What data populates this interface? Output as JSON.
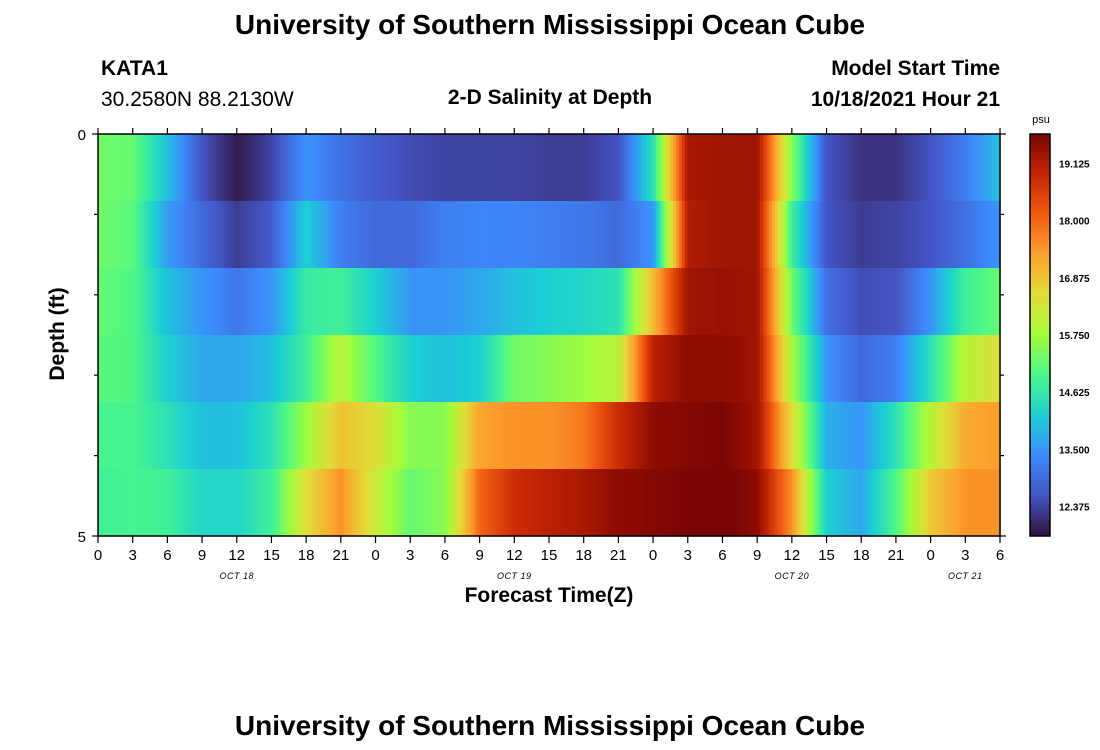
{
  "header": {
    "title": "University of Southern Mississippi Ocean Cube",
    "station": "KATA1",
    "coords": "30.2580N  88.2130W",
    "subtitle": "2-D Salinity at Depth",
    "model_label": "Model Start Time",
    "model_time": "10/18/2021 Hour 21"
  },
  "footer": {
    "title": "University of Southern Mississippi Ocean Cube"
  },
  "colors": {
    "scale": [
      "#30123b",
      "#4454c4",
      "#3d8bfd",
      "#1bcfd4",
      "#4af78a",
      "#a4fc3c",
      "#e1dd37",
      "#fca22e",
      "#f05b12",
      "#c42503",
      "#7a0403"
    ]
  },
  "chart_data": {
    "type": "heatmap",
    "title": "2-D Salinity at Depth",
    "xlabel": "Forecast Time(Z)",
    "ylabel": "Depth (ft)",
    "y_ticks": [
      "0",
      "5"
    ],
    "ylim": [
      0,
      5
    ],
    "x_ticks": [
      "0",
      "3",
      "6",
      "9",
      "12",
      "15",
      "18",
      "21",
      "0",
      "3",
      "6",
      "9",
      "12",
      "15",
      "18",
      "21",
      "0",
      "3",
      "6",
      "9",
      "12",
      "15",
      "18",
      "21",
      "0",
      "3",
      "6"
    ],
    "date_labels": [
      {
        "label": "OCT 18",
        "hour_index": 12
      },
      {
        "label": "OCT 19",
        "hour_index": 36
      },
      {
        "label": "OCT 20",
        "hour_index": 60
      },
      {
        "label": "OCT 21",
        "hour_index": 75
      }
    ],
    "colorbar": {
      "unit": "psu",
      "min": 11.8,
      "max": 19.7,
      "ticks": [
        "19.125",
        "18.000",
        "16.875",
        "15.750",
        "14.625",
        "13.500",
        "12.375"
      ],
      "tick_values": [
        19.125,
        18.0,
        16.875,
        15.75,
        14.625,
        13.5,
        12.375
      ]
    },
    "hours": [
      0,
      3,
      6,
      9,
      12,
      15,
      18,
      21,
      24,
      27,
      30,
      33,
      36,
      39,
      42,
      45,
      48,
      51,
      54,
      57,
      60,
      63,
      66,
      69,
      72,
      75,
      78
    ],
    "depth_levels": [
      0,
      1,
      2,
      3,
      4,
      5
    ],
    "values": [
      [
        15.3,
        15.2,
        14.0,
        12.6,
        11.9,
        12.4,
        13.5,
        13.0,
        12.7,
        12.5,
        12.4,
        12.4,
        12.4,
        12.3,
        12.3,
        12.6,
        14.5,
        19.2,
        19.3,
        19.3,
        15.5,
        12.6,
        12.2,
        12.2,
        12.6,
        13.2,
        14.0
      ],
      [
        15.3,
        15.1,
        13.6,
        12.9,
        12.3,
        12.7,
        14.2,
        13.2,
        12.9,
        12.9,
        13.2,
        13.3,
        13.3,
        13.2,
        13.1,
        12.9,
        13.5,
        19.1,
        19.3,
        19.3,
        14.8,
        12.6,
        12.3,
        12.4,
        12.6,
        13.0,
        13.5
      ],
      [
        15.2,
        15.0,
        14.0,
        13.5,
        13.1,
        13.5,
        14.7,
        14.8,
        14.2,
        13.5,
        13.5,
        13.7,
        14.0,
        14.2,
        14.3,
        14.5,
        17.0,
        19.3,
        19.4,
        19.3,
        15.3,
        13.0,
        12.5,
        12.6,
        13.5,
        14.8,
        15.2
      ],
      [
        15.1,
        15.0,
        14.2,
        13.7,
        13.7,
        14.0,
        14.8,
        16.0,
        15.0,
        14.2,
        14.0,
        14.2,
        15.3,
        15.5,
        15.7,
        16.0,
        19.0,
        19.5,
        19.5,
        19.3,
        15.8,
        13.5,
        12.9,
        13.2,
        14.5,
        16.0,
        16.5
      ],
      [
        14.9,
        14.9,
        14.5,
        14.0,
        14.0,
        14.5,
        15.7,
        16.9,
        16.5,
        15.5,
        15.5,
        17.3,
        17.5,
        17.5,
        17.8,
        18.8,
        19.5,
        19.6,
        19.7,
        19.3,
        16.5,
        13.8,
        13.5,
        14.5,
        16.0,
        17.2,
        17.4
      ],
      [
        14.8,
        14.9,
        14.8,
        14.3,
        14.3,
        14.8,
        16.5,
        17.5,
        16.2,
        15.2,
        15.5,
        18.0,
        18.8,
        19.0,
        19.2,
        19.5,
        19.6,
        19.7,
        19.8,
        19.5,
        17.5,
        14.2,
        13.7,
        15.0,
        16.8,
        17.5,
        17.5
      ]
    ]
  }
}
